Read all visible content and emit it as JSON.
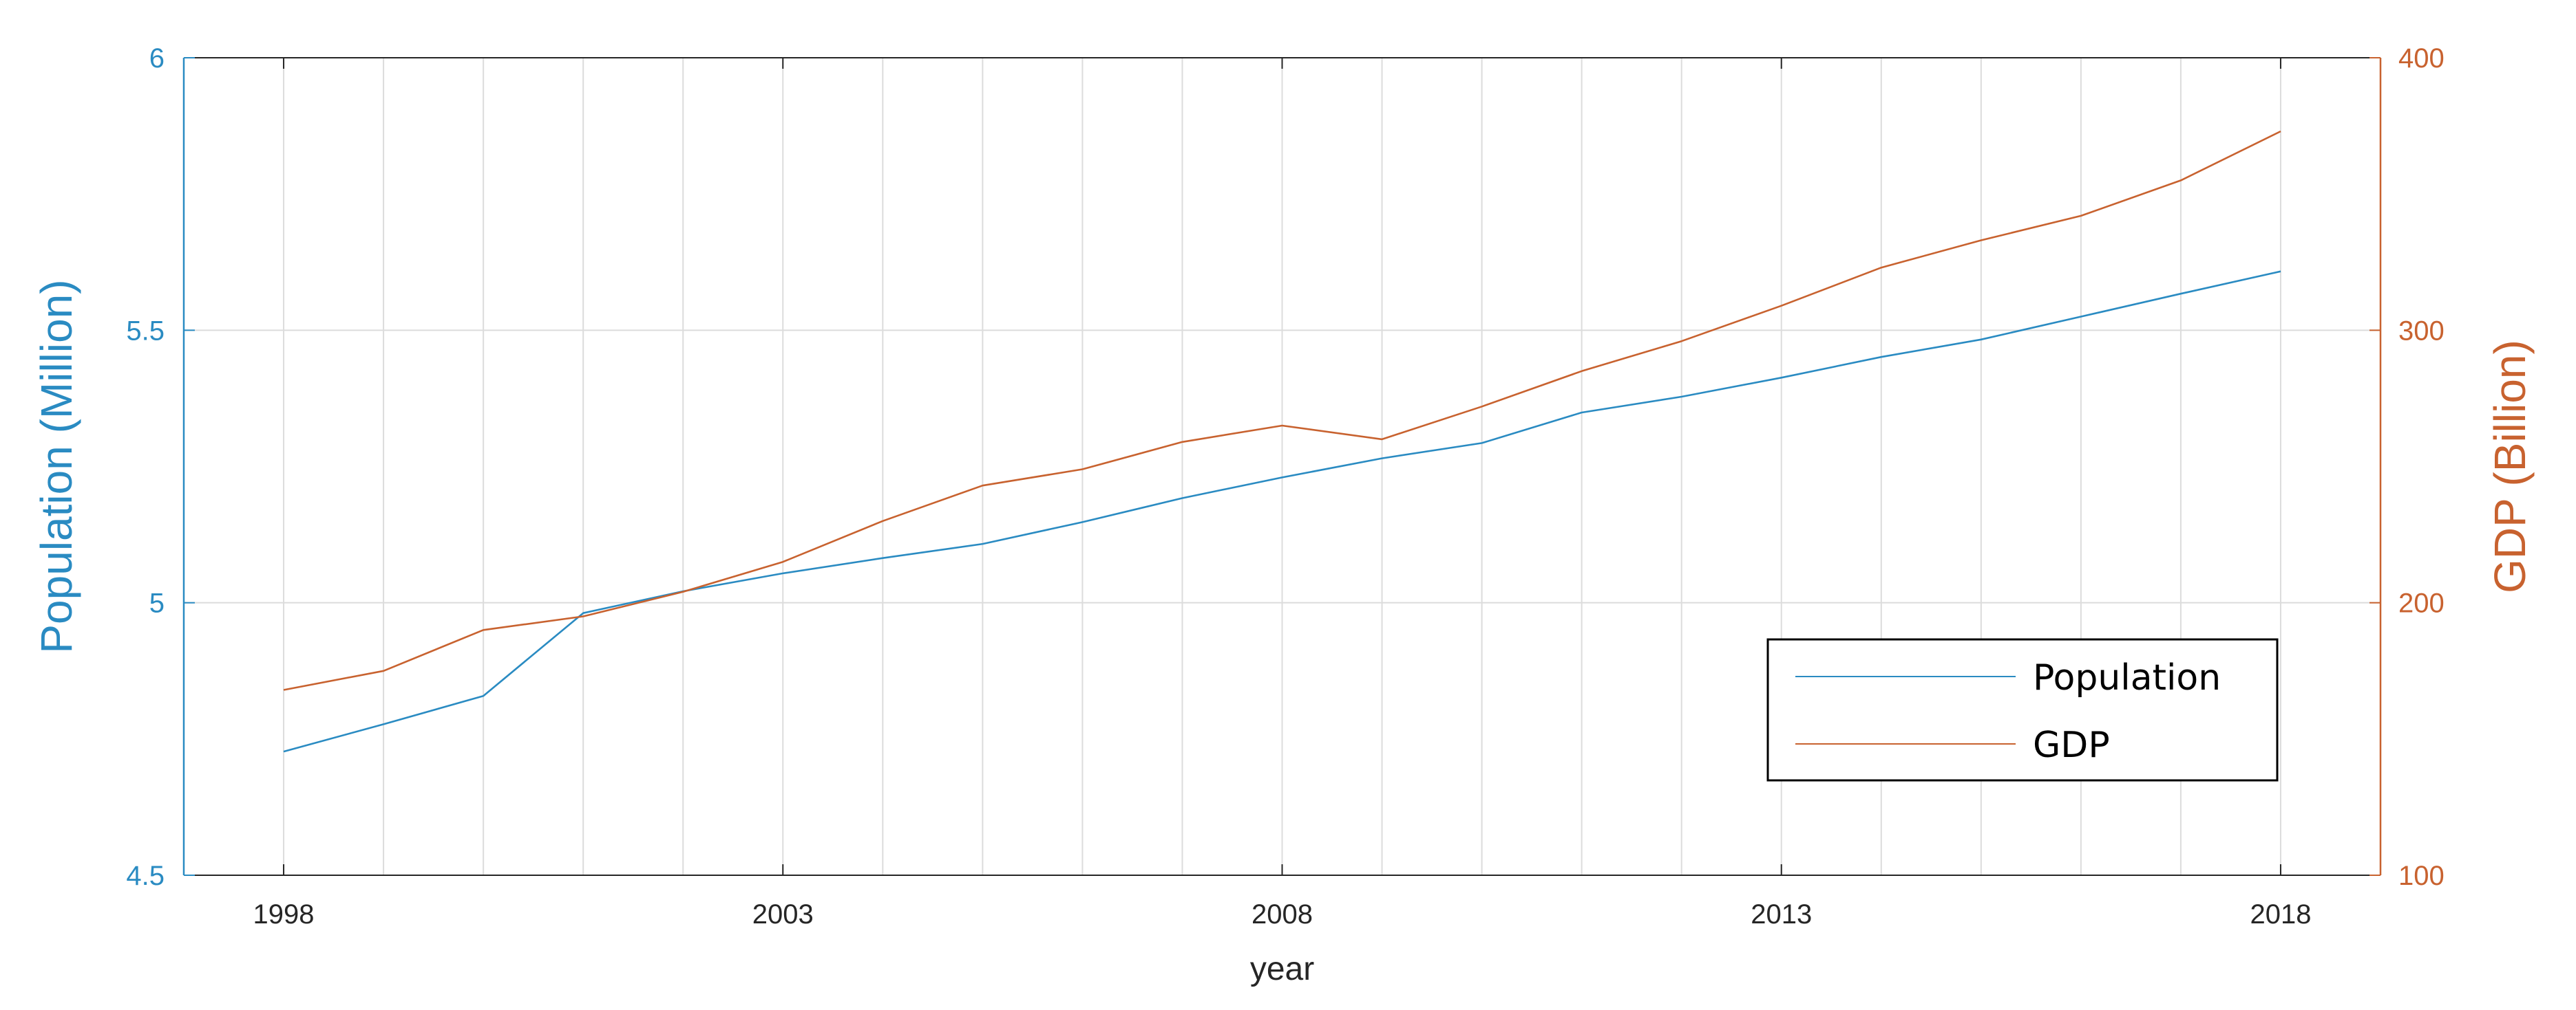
{
  "chart_data": {
    "type": "line",
    "x": [
      1998,
      1999,
      2000,
      2001,
      2002,
      2003,
      2004,
      2005,
      2006,
      2007,
      2008,
      2009,
      2010,
      2011,
      2012,
      2013,
      2014,
      2015,
      2016,
      2017,
      2018
    ],
    "series": [
      {
        "name": "Population",
        "axis": "left",
        "color": "#2a8bc2",
        "values": [
          4.727,
          4.777,
          4.829,
          4.981,
          5.021,
          5.054,
          5.082,
          5.108,
          5.148,
          5.192,
          5.23,
          5.265,
          5.293,
          5.349,
          5.378,
          5.413,
          5.451,
          5.483,
          5.525,
          5.567,
          5.608
        ]
      },
      {
        "name": "GDP",
        "axis": "right",
        "color": "#c8622f",
        "values": [
          168,
          175,
          190,
          195,
          204,
          215,
          230,
          243,
          249,
          259,
          265,
          260,
          272,
          285,
          296,
          309,
          323,
          333,
          342,
          355,
          373
        ]
      }
    ],
    "xlabel": "year",
    "ylabel_left": "Population (Million)",
    "ylabel_right": "GDP (Billion)",
    "xlim": [
      1997,
      2019
    ],
    "ylim_left": [
      4.5,
      6
    ],
    "ylim_right": [
      100,
      400
    ],
    "xticks": [
      1998,
      2003,
      2008,
      2013,
      2018
    ],
    "yticks_left": [
      4.5,
      5,
      5.5,
      6
    ],
    "yticks_right": [
      100,
      200,
      300,
      400
    ],
    "ytick_labels_left": [
      "4.5",
      "5",
      "5.5",
      "6"
    ],
    "ytick_labels_right": [
      "100",
      "200",
      "300",
      "400"
    ],
    "xtick_labels": [
      "1998",
      "2003",
      "2008",
      "2013",
      "2018"
    ],
    "vertical_gridlines_every_year": true,
    "grid": true,
    "legend_position": "bottom-right",
    "colors": {
      "left_axis": "#2a8bc2",
      "right_axis": "#c8622f",
      "grid": "#dcdcdc",
      "axis_dark": "#262626"
    }
  }
}
